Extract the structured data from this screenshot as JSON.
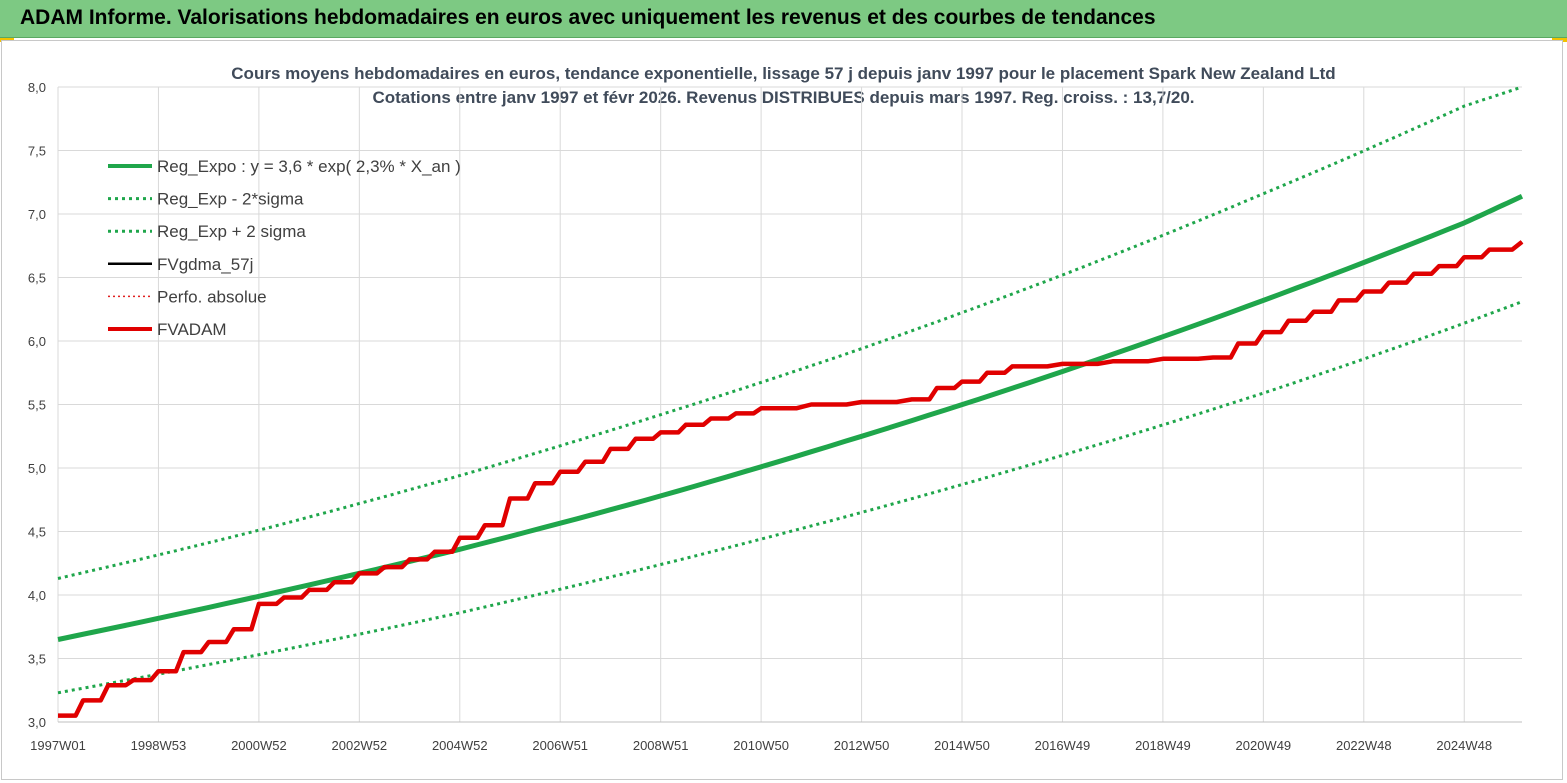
{
  "banner": {
    "title": "ADAM Informe. Valorisations hebdomadaires en euros avec uniquement les revenus et des courbes de tendances"
  },
  "colors": {
    "reg_expo": "#1fa64b",
    "sigma": "#1fa64b",
    "fvgdma": "#000000",
    "perfo": "#e02020",
    "fvadam": "#e00000",
    "grid": "#d9d9d9"
  },
  "chart_data": {
    "type": "line",
    "title_line1": "Cours moyens hebdomadaires en euros, tendance exponentielle, lissage 57 j depuis janv 1997 pour le placement Spark New Zealand Ltd",
    "title_line2": "Cotations entre janv 1997 et févr 2026. Revenus DISTRIBUES depuis mars 1997. Reg. croiss. : 13,7/20.",
    "xlabel": "",
    "ylabel": "",
    "ylim": [
      3.0,
      8.0
    ],
    "xlim": [
      1997.0,
      2026.15
    ],
    "y_ticks": [
      "3,0",
      "3,5",
      "4,0",
      "4,5",
      "5,0",
      "5,5",
      "6,0",
      "6,5",
      "7,0",
      "7,5",
      "8,0"
    ],
    "x_ticks": [
      {
        "label": "1997W01",
        "x": 1997.0
      },
      {
        "label": "1998W53",
        "x": 1999.0
      },
      {
        "label": "2000W52",
        "x": 2001.0
      },
      {
        "label": "2002W52",
        "x": 2003.0
      },
      {
        "label": "2004W52",
        "x": 2005.0
      },
      {
        "label": "2006W51",
        "x": 2007.0
      },
      {
        "label": "2008W51",
        "x": 2009.0
      },
      {
        "label": "2010W50",
        "x": 2011.0
      },
      {
        "label": "2012W50",
        "x": 2013.0
      },
      {
        "label": "2014W50",
        "x": 2015.0
      },
      {
        "label": "2016W49",
        "x": 2017.0
      },
      {
        "label": "2018W49",
        "x": 2019.0
      },
      {
        "label": "2020W49",
        "x": 2021.0
      },
      {
        "label": "2022W48",
        "x": 2023.0
      },
      {
        "label": "2024W48",
        "x": 2025.0
      }
    ],
    "legend_position": "top-left",
    "series": [
      {
        "name": "Reg_Expo : y = 3,6 * exp( 2,3% *  X_an )",
        "style": "solid-thick",
        "x": [
          1997.0,
          2001.0,
          2005.0,
          2009.0,
          2013.0,
          2017.0,
          2021.0,
          2025.0,
          2026.15
        ],
        "y": [
          3.65,
          3.99,
          4.36,
          4.78,
          5.25,
          5.76,
          6.32,
          6.93,
          7.14
        ]
      },
      {
        "name": "Reg_Exp - 2*sigma",
        "style": "dotted",
        "x": [
          1997.0,
          2001.0,
          2005.0,
          2009.0,
          2013.0,
          2017.0,
          2021.0,
          2025.0,
          2026.15
        ],
        "y": [
          3.23,
          3.53,
          3.86,
          4.24,
          4.65,
          5.1,
          5.59,
          6.14,
          6.31
        ]
      },
      {
        "name": "Reg_Exp + 2 sigma",
        "style": "dotted",
        "x": [
          1997.0,
          2001.0,
          2005.0,
          2009.0,
          2013.0,
          2017.0,
          2021.0,
          2025.0,
          2026.15
        ],
        "y": [
          4.13,
          4.51,
          4.94,
          5.42,
          5.94,
          6.52,
          7.16,
          7.85,
          8.0
        ]
      },
      {
        "name": "FVgdma_57j",
        "style": "solid-thin",
        "x": [
          1997.0,
          1997.5,
          1998.0,
          1998.5,
          1999.0,
          1999.5,
          2000.0,
          2000.5,
          2001.0,
          2001.5,
          2002.0,
          2002.5,
          2003.0,
          2003.5,
          2004.0,
          2004.5,
          2005.0,
          2005.5,
          2006.0,
          2006.5,
          2007.0,
          2007.5,
          2008.0,
          2008.5,
          2009.0,
          2009.5,
          2010.0,
          2010.5,
          2011.0,
          2012.0,
          2013.0,
          2014.0,
          2014.5,
          2015.0,
          2015.5,
          2016.0,
          2017.0,
          2018.0,
          2019.0,
          2020.0,
          2020.5,
          2021.0,
          2021.5,
          2022.0,
          2022.5,
          2023.0,
          2023.5,
          2024.0,
          2024.5,
          2025.0,
          2025.5,
          2026.15
        ],
        "y": [
          3.05,
          3.17,
          3.29,
          3.33,
          3.4,
          3.55,
          3.63,
          3.73,
          3.93,
          3.98,
          4.04,
          4.1,
          4.17,
          4.22,
          4.28,
          4.34,
          4.45,
          4.55,
          4.76,
          4.88,
          4.97,
          5.05,
          5.15,
          5.23,
          5.28,
          5.34,
          5.39,
          5.43,
          5.47,
          5.5,
          5.52,
          5.54,
          5.63,
          5.68,
          5.75,
          5.8,
          5.82,
          5.84,
          5.86,
          5.87,
          5.98,
          6.07,
          6.16,
          6.23,
          6.32,
          6.39,
          6.46,
          6.53,
          6.59,
          6.66,
          6.72,
          6.78
        ]
      },
      {
        "name": "Perfo. absolue",
        "style": "dotted-thin",
        "x": [],
        "y": []
      },
      {
        "name": "FVADAM",
        "style": "solid-thick",
        "x": [
          1997.0,
          1997.5,
          1998.0,
          1998.5,
          1999.0,
          1999.5,
          2000.0,
          2000.5,
          2001.0,
          2001.5,
          2002.0,
          2002.5,
          2003.0,
          2003.5,
          2004.0,
          2004.5,
          2005.0,
          2005.5,
          2006.0,
          2006.5,
          2007.0,
          2007.5,
          2008.0,
          2008.5,
          2009.0,
          2009.5,
          2010.0,
          2010.5,
          2011.0,
          2012.0,
          2013.0,
          2014.0,
          2014.5,
          2015.0,
          2015.5,
          2016.0,
          2017.0,
          2018.0,
          2019.0,
          2020.0,
          2020.5,
          2021.0,
          2021.5,
          2022.0,
          2022.5,
          2023.0,
          2023.5,
          2024.0,
          2024.5,
          2025.0,
          2025.5,
          2026.15
        ],
        "y": [
          3.05,
          3.17,
          3.29,
          3.33,
          3.4,
          3.55,
          3.63,
          3.73,
          3.93,
          3.98,
          4.04,
          4.1,
          4.17,
          4.22,
          4.28,
          4.34,
          4.45,
          4.55,
          4.76,
          4.88,
          4.97,
          5.05,
          5.15,
          5.23,
          5.28,
          5.34,
          5.39,
          5.43,
          5.47,
          5.5,
          5.52,
          5.54,
          5.63,
          5.68,
          5.75,
          5.8,
          5.82,
          5.84,
          5.86,
          5.87,
          5.98,
          6.07,
          6.16,
          6.23,
          6.32,
          6.39,
          6.46,
          6.53,
          6.59,
          6.66,
          6.72,
          6.78
        ]
      }
    ]
  }
}
